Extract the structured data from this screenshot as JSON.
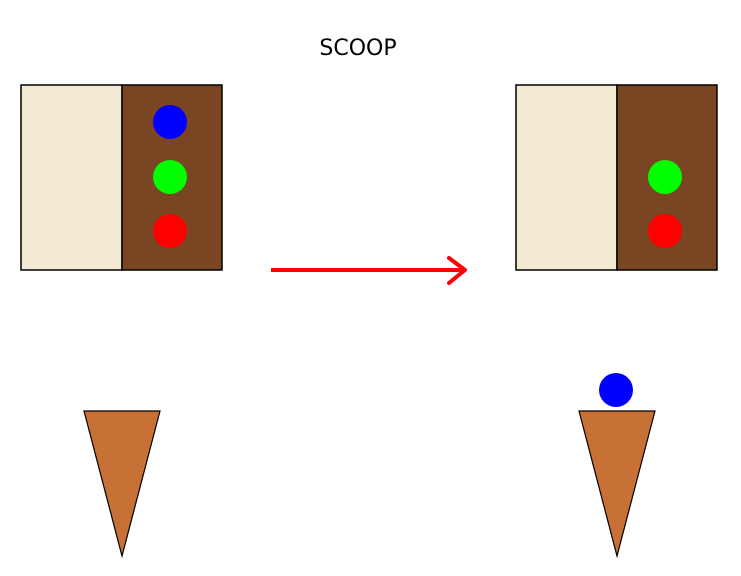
{
  "title": "SCOOP",
  "colors": {
    "cream": "#f3ead3",
    "chocolate": "#7a4522",
    "cone": "#c87137",
    "arrow": "#ff0000",
    "outline": "#000000",
    "background": "#ffffff"
  },
  "before": {
    "tub_scoops": [
      "blue",
      "green",
      "red"
    ],
    "cone_scoops": []
  },
  "after": {
    "tub_scoops": [
      "green",
      "red"
    ],
    "cone_scoops": [
      "blue"
    ]
  },
  "scoop_colors": {
    "blue": "#0000ff",
    "green": "#00ff00",
    "red": "#ff0000"
  },
  "arrow": {
    "direction": "right",
    "meaning": "transition"
  }
}
